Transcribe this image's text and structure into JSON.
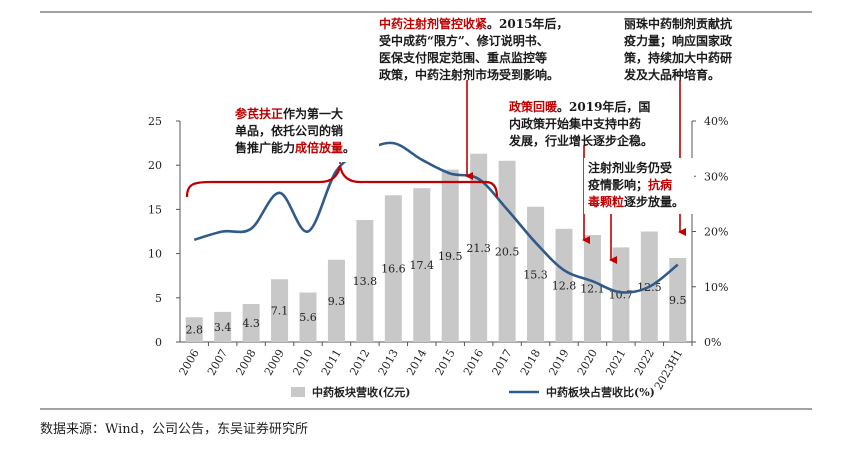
{
  "chart_data": {
    "type": "bar+line",
    "categories": [
      "2006",
      "2007",
      "2008",
      "2009",
      "2010",
      "2011",
      "2012",
      "2013",
      "2014",
      "2015",
      "2016",
      "2017",
      "2018",
      "2019",
      "2020",
      "2021",
      "2022",
      "2023H1"
    ],
    "series": [
      {
        "name": "中药板块营收(亿元)",
        "type": "bar",
        "axis": "left",
        "color": "#c8c8c8",
        "values": [
          2.8,
          3.4,
          4.3,
          7.1,
          5.6,
          9.3,
          13.8,
          16.6,
          17.4,
          19.5,
          21.3,
          20.5,
          15.3,
          12.8,
          12.1,
          10.7,
          12.5,
          9.5
        ],
        "labels": [
          "2.8",
          "3.4",
          "4.3",
          "7.1",
          "5.6",
          "9.3",
          "13.8",
          "16.6",
          "17.4",
          "19.5",
          "21.3",
          "20.5",
          "15.3",
          "12.8",
          "12.1",
          "10.7",
          "12.5",
          "9.5"
        ]
      },
      {
        "name": "中药板块占营收比(%)",
        "type": "line",
        "axis": "right",
        "color": "#2f5a8a",
        "values": [
          18.5,
          20.0,
          20.5,
          27.0,
          20.0,
          31.0,
          34.5,
          36.0,
          33.0,
          30.5,
          29.5,
          24.0,
          18.0,
          13.0,
          11.0,
          9.0,
          10.0,
          14.0
        ]
      }
    ],
    "left_axis": {
      "ylim": [
        0,
        25
      ],
      "ticks": [
        "0",
        "5",
        "10",
        "15",
        "20",
        "25"
      ]
    },
    "right_axis": {
      "ylim": [
        0,
        40
      ],
      "ticks": [
        "0%",
        "10%",
        "20%",
        "30%",
        "40%"
      ]
    },
    "legend": {
      "position": "bottom",
      "items": [
        "中药板块营收(亿元)",
        "中药板块占营收比(%)"
      ]
    },
    "annotations": [
      {
        "id": "shenqi",
        "lines": [
          [
            {
              "t": "参芪扶正",
              "red": true
            },
            {
              "t": "作为第一大",
              "red": false
            }
          ],
          [
            {
              "t": "单品，依托公司的销",
              "red": false
            }
          ],
          [
            {
              "t": "售推广能力",
              "red": false
            },
            {
              "t": "成倍放量",
              "red": true
            },
            {
              "t": "。",
              "red": false
            }
          ]
        ]
      },
      {
        "id": "control",
        "lines": [
          [
            {
              "t": "中药注射剂管控收紧",
              "red": true
            },
            {
              "t": "。2015年后，",
              "red": false
            }
          ],
          [
            {
              "t": "受中成药“限方”、修订说明书、",
              "red": false
            }
          ],
          [
            {
              "t": "医保支付限定范围、重点监控等",
              "red": false
            }
          ],
          [
            {
              "t": "政策，中药注射剂市场受到影响。",
              "red": false
            }
          ]
        ]
      },
      {
        "id": "recover",
        "lines": [
          [
            {
              "t": "政策回暖",
              "red": true
            },
            {
              "t": "。2019年后，国",
              "red": false
            }
          ],
          [
            {
              "t": "内政策开始集中支持中药",
              "red": false
            }
          ],
          [
            {
              "t": "发展，行业增长逐步企稳。",
              "red": false
            }
          ]
        ]
      },
      {
        "id": "contribute",
        "lines": [
          [
            {
              "t": "丽珠中药制剂贡献抗",
              "red": false
            }
          ],
          [
            {
              "t": "疫力量；响应国家政",
              "red": false
            }
          ],
          [
            {
              "t": "策，持续加大中药研",
              "red": false
            }
          ],
          [
            {
              "t": "发及大品种培育。",
              "red": false
            }
          ]
        ]
      },
      {
        "id": "epidemic",
        "lines": [
          [
            {
              "t": "注射剂业务仍受",
              "red": false
            }
          ],
          [
            {
              "t": "疫情影响；",
              "red": false
            },
            {
              "t": "抗病",
              "red": true
            }
          ],
          [
            {
              "t": "毒颗粒",
              "red": true
            },
            {
              "t": "逐步放量。",
              "red": false
            }
          ]
        ]
      }
    ]
  },
  "source_text": "数据来源：Wind，公司公告，东吴证券研究所"
}
